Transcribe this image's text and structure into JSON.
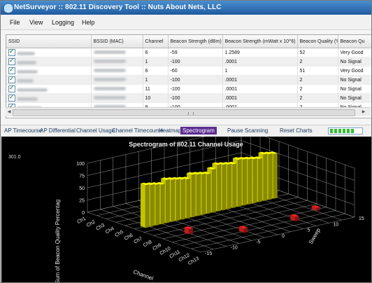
{
  "window": {
    "title": "NetSurveyor :: 802.11 Discovery Tool :: Nuts About Nets, LLC"
  },
  "menu": [
    "File",
    "View",
    "Logging",
    "Help"
  ],
  "table": {
    "columns": [
      "SSID",
      "BSSID (MAC)",
      "Channel",
      "Beacon Strength (dBm)",
      "Beacon Strength (mWatt x 10^6)",
      "Beacon Quality (%)",
      "Beacon Qu"
    ],
    "rows": [
      {
        "channel": "6",
        "dbm": "-59",
        "mwatt": "1.2589",
        "quality": "52",
        "quality_label": "Very Good"
      },
      {
        "channel": "1",
        "dbm": "-100",
        "mwatt": ".0001",
        "quality": "2",
        "quality_label": "No Signal"
      },
      {
        "channel": "6",
        "dbm": "-60",
        "mwatt": "1",
        "quality": "51",
        "quality_label": "Very Good"
      },
      {
        "channel": "1",
        "dbm": "-100",
        "mwatt": ".0001",
        "quality": "2",
        "quality_label": "No Signal"
      },
      {
        "channel": "11",
        "dbm": "-100",
        "mwatt": ".0001",
        "quality": "2",
        "quality_label": "No Signal"
      },
      {
        "channel": "10",
        "dbm": "-100",
        "mwatt": ".0001",
        "quality": "2",
        "quality_label": "No Signal"
      },
      {
        "channel": "9",
        "dbm": "-100",
        "mwatt": ".0001",
        "quality": "2",
        "quality_label": "No Signal"
      }
    ]
  },
  "tabs": [
    "AP Timecourse",
    "AP Differential",
    "Channel Usage",
    "Channel Timecourse",
    "Heatmap",
    "Spectrogram"
  ],
  "active_tab": "Spectrogram",
  "actions": {
    "pause": "Pause Scanning",
    "reset": "Reset Charts"
  },
  "scan_progress": {
    "filled_segments": 6,
    "total_segments": 6
  },
  "chart": {
    "title": "Spectrogram of 802.11 Channel Usage",
    "corner_value": "301.0",
    "z_axis_label": "Sum of Beacon Quality Percentag",
    "z_ticks": [
      "0",
      "25",
      "50",
      "75",
      "100"
    ],
    "channel_axis_label": "Channel",
    "channel_ticks": [
      "Ch1",
      "Ch2",
      "Ch3",
      "Ch4",
      "Ch5",
      "Ch6",
      "Ch7",
      "Ch8",
      "Ch9",
      "Ch10",
      "Ch11",
      "Ch12",
      "Ch13"
    ],
    "sweep_axis_label": "Sweep",
    "sweep_ticks": [
      "-15",
      "-10",
      "-5",
      "0",
      "5",
      "10",
      "15"
    ],
    "colors": {
      "ch6": "#e6e600",
      "ch1": "#35c6c6",
      "ch9_11": "#e02020",
      "grid": "#9a9a9a",
      "label": "#e8e8e8"
    }
  }
}
